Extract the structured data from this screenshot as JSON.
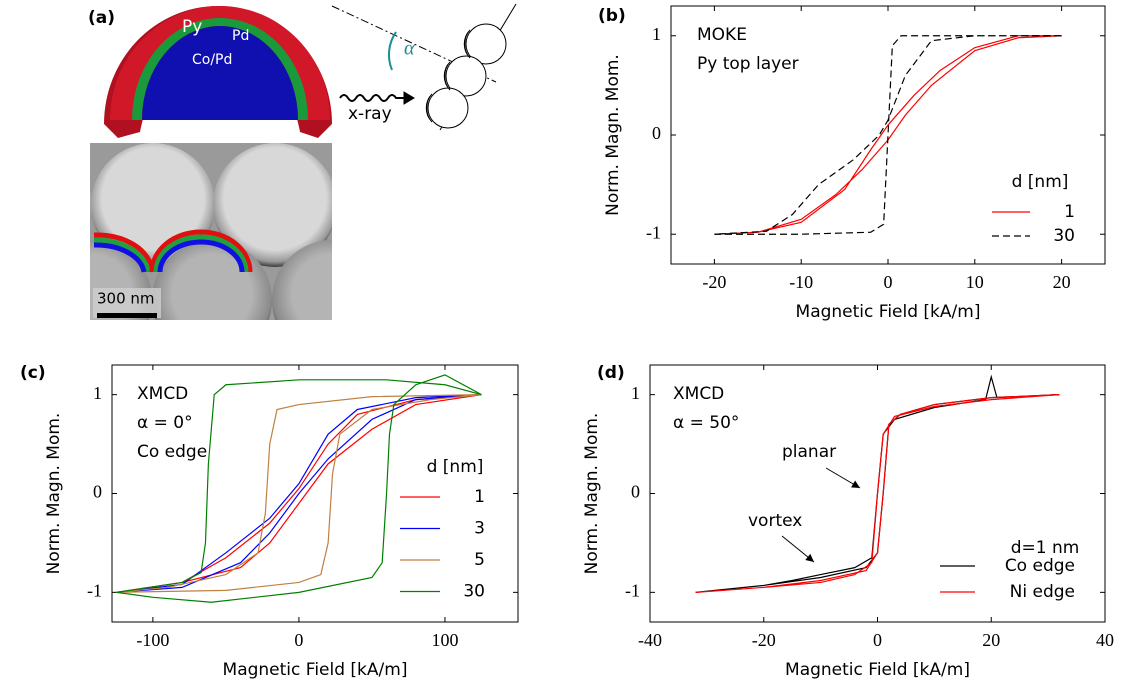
{
  "panel_a": {
    "label": "(a)",
    "layers": [
      "Py",
      "Pd",
      "Co/Pd"
    ],
    "beam": "x-ray",
    "angle": "α",
    "scale_bar": "300 nm"
  },
  "chart_data": [
    {
      "type": "line",
      "panel_label": "(b)",
      "annotations": [
        "MOKE",
        "Py top layer"
      ],
      "x_label": "Magnetic Field [kA/m]",
      "y_label": "Norm. Magn. Mom.",
      "xlim": [
        -25,
        25
      ],
      "ylim": [
        -1.3,
        1.3
      ],
      "xticks": [
        -20,
        -10,
        0,
        10,
        20
      ],
      "yticks": [
        -1,
        0,
        1
      ],
      "grid": false,
      "legend_title": "d [nm]",
      "legend": "lower right",
      "series": [
        {
          "name": "1",
          "color": "#ff0000",
          "line_style": "solid",
          "x": [
            20,
            15,
            10,
            6,
            3,
            0,
            -2,
            -5,
            -10,
            -15,
            -20,
            -15,
            -10,
            -6,
            -3,
            0,
            2,
            5,
            10,
            15,
            20
          ],
          "values": [
            1,
            1,
            0.88,
            0.65,
            0.4,
            0.1,
            -0.15,
            -0.55,
            -0.88,
            -0.98,
            -1,
            -0.98,
            -0.85,
            -0.6,
            -0.35,
            -0.05,
            0.2,
            0.5,
            0.85,
            0.98,
            1
          ]
        },
        {
          "name": "30",
          "color": "#000000",
          "line_style": "dashed",
          "x": [
            20,
            10,
            5,
            2,
            0,
            -1,
            -4,
            -8,
            -11,
            -14,
            -20,
            -10,
            -2,
            -0.5,
            0,
            0.5,
            1.5,
            20
          ],
          "values": [
            1,
            1,
            0.95,
            0.6,
            0.15,
            0,
            -0.25,
            -0.5,
            -0.8,
            -0.97,
            -1,
            -1,
            -0.98,
            -0.9,
            0,
            0.9,
            1,
            1
          ]
        }
      ]
    },
    {
      "type": "line",
      "panel_label": "(c)",
      "annotations": [
        "XMCD",
        "α = 0°",
        "Co edge"
      ],
      "x_label": "Magnetic Field [kA/m]",
      "y_label": "Norm. Magn. Mom.",
      "xlim": [
        -128,
        150
      ],
      "ylim": [
        -1.3,
        1.3
      ],
      "xticks": [
        -100,
        0,
        100
      ],
      "yticks": [
        -1,
        0,
        1
      ],
      "grid": false,
      "legend_title": "d [nm]",
      "legend": "lower right",
      "series": [
        {
          "name": "1",
          "color": "#ff0000",
          "line_style": "solid",
          "x": [
            125,
            80,
            40,
            20,
            0,
            -20,
            -50,
            -80,
            -125,
            -80,
            -40,
            -20,
            0,
            20,
            50,
            80,
            125
          ],
          "values": [
            1,
            0.95,
            0.8,
            0.5,
            0.05,
            -0.3,
            -0.65,
            -0.9,
            -1,
            -0.9,
            -0.75,
            -0.5,
            -0.1,
            0.3,
            0.65,
            0.9,
            1
          ]
        },
        {
          "name": "3",
          "color": "#0000ff",
          "line_style": "solid",
          "x": [
            125,
            80,
            40,
            20,
            0,
            -20,
            -50,
            -80,
            -125,
            -80,
            -40,
            -20,
            0,
            20,
            50,
            80,
            125
          ],
          "values": [
            1,
            0.97,
            0.85,
            0.6,
            0.1,
            -0.25,
            -0.6,
            -0.92,
            -1,
            -0.95,
            -0.7,
            -0.4,
            0,
            0.35,
            0.75,
            0.95,
            1
          ]
        },
        {
          "name": "5",
          "color": "#bf8040",
          "line_style": "solid",
          "x": [
            125,
            50,
            0,
            -15,
            -20,
            -23,
            -28,
            -50,
            -90,
            -125,
            -50,
            0,
            15,
            20,
            23,
            28,
            50,
            90,
            125
          ],
          "values": [
            1,
            0.98,
            0.9,
            0.85,
            0.5,
            -0.2,
            -0.6,
            -0.82,
            -0.95,
            -1,
            -0.98,
            -0.9,
            -0.82,
            -0.5,
            0.2,
            0.6,
            0.85,
            0.95,
            1
          ]
        },
        {
          "name": "30",
          "color": "#008000",
          "line_style": "solid",
          "x": [
            125,
            100,
            60,
            0,
            -50,
            -58,
            -62,
            -64,
            -67,
            -80,
            -125,
            -100,
            -60,
            0,
            50,
            57,
            60,
            62,
            65,
            80,
            100,
            125
          ],
          "values": [
            1,
            1.1,
            1.15,
            1.15,
            1.1,
            1.0,
            0.3,
            -0.5,
            -0.8,
            -0.9,
            -1,
            -1.05,
            -1.1,
            -1,
            -0.85,
            -0.7,
            0,
            0.6,
            0.9,
            1.1,
            1.2,
            1
          ]
        }
      ]
    },
    {
      "type": "line",
      "panel_label": "(d)",
      "annotations": [
        "XMCD",
        "α = 50°"
      ],
      "callouts": [
        "planar",
        "vortex"
      ],
      "x_label": "Magnetic Field [kA/m]",
      "y_label": "Norm. Magn. Mom.",
      "xlim": [
        -40,
        40
      ],
      "ylim": [
        -1.3,
        1.3
      ],
      "xticks": [
        -40,
        -20,
        0,
        20,
        40
      ],
      "yticks": [
        -1,
        0,
        1
      ],
      "grid": false,
      "legend_title": "d=1 nm",
      "legend": "lower right",
      "series": [
        {
          "name": "Co edge",
          "color": "#000000",
          "line_style": "solid",
          "x": [
            32,
            20,
            10,
            4,
            2,
            1,
            0,
            -2,
            -10,
            -20,
            -32,
            -20,
            -15,
            -10,
            -4,
            -1,
            0,
            1,
            3,
            10,
            19,
            20,
            21,
            32
          ],
          "values": [
            1,
            0.97,
            0.9,
            0.8,
            0.7,
            0,
            -0.6,
            -0.75,
            -0.85,
            -0.93,
            -1,
            -0.93,
            -0.88,
            -0.82,
            -0.75,
            -0.65,
            0,
            0.6,
            0.75,
            0.87,
            0.95,
            1.18,
            0.97,
            1
          ]
        },
        {
          "name": "Ni edge",
          "color": "#ff0000",
          "line_style": "solid",
          "x": [
            32,
            20,
            10,
            4,
            2,
            1,
            0,
            -2,
            -10,
            -20,
            -32,
            -20,
            -10,
            -4,
            -1,
            0,
            1,
            3,
            10,
            20,
            32
          ],
          "values": [
            1,
            0.97,
            0.9,
            0.8,
            0.7,
            0,
            -0.6,
            -0.78,
            -0.88,
            -0.95,
            -1,
            -0.95,
            -0.9,
            -0.82,
            -0.7,
            0,
            0.6,
            0.78,
            0.88,
            0.95,
            1
          ]
        }
      ]
    }
  ]
}
